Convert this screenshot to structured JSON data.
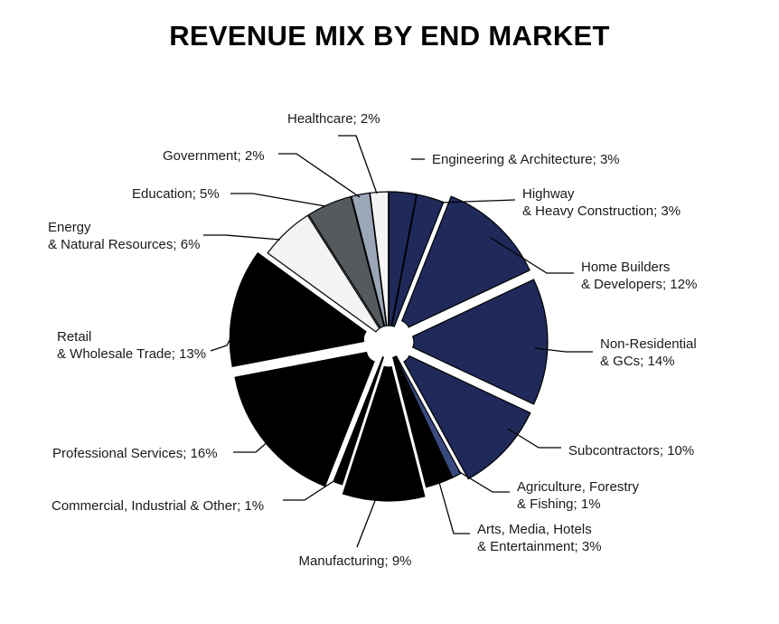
{
  "chart_data": {
    "type": "pie",
    "title": "REVENUE MIX BY END MARKET",
    "slices": [
      {
        "label": "Engineering & Architecture; 3%",
        "value": 3,
        "color": "#1f2a5a",
        "exploded": false
      },
      {
        "label": "Highway & Heavy Construction; 3%",
        "value": 3,
        "color": "#1f2a5a",
        "exploded": false
      },
      {
        "label": "Home Builders & Developers; 12%",
        "value": 12,
        "color": "#1f2a5a",
        "exploded": true
      },
      {
        "label": "Non-Residential & GCs; 14%",
        "value": 14,
        "color": "#1f2a5a",
        "exploded": true
      },
      {
        "label": "Subcontractors; 10%",
        "value": 10,
        "color": "#1f2a5a",
        "exploded": true
      },
      {
        "label": "Agriculture, Forestry & Fishing; 1%",
        "value": 1,
        "color": "#3a4a80",
        "exploded": false
      },
      {
        "label": "Arts, Media, Hotels & Entertainment; 3%",
        "value": 3,
        "color": "#000000",
        "exploded": false
      },
      {
        "label": "Manufacturing; 9%",
        "value": 9,
        "color": "#000000",
        "exploded": true
      },
      {
        "label": "Commercial, Industrial & Other; 1%",
        "value": 1,
        "color": "#000000",
        "exploded": false
      },
      {
        "label": "Professional Services; 16%",
        "value": 16,
        "color": "#000000",
        "exploded": true
      },
      {
        "label": "Retail & Wholesale Trade; 13%",
        "value": 13,
        "color": "#000000",
        "exploded": true
      },
      {
        "label": "Energy & Natural Resources; 6%",
        "value": 6,
        "color": "#f4f4f4",
        "exploded": false
      },
      {
        "label": "Education; 5%",
        "value": 5,
        "color": "#555a5e",
        "exploded": false
      },
      {
        "label": "Government; 2%",
        "value": 2,
        "color": "#9ba6b6",
        "exploded": false
      },
      {
        "label": "Healthcare; 2%",
        "value": 2,
        "color": "#f4f4f4",
        "exploded": false
      }
    ],
    "legend": "none"
  }
}
